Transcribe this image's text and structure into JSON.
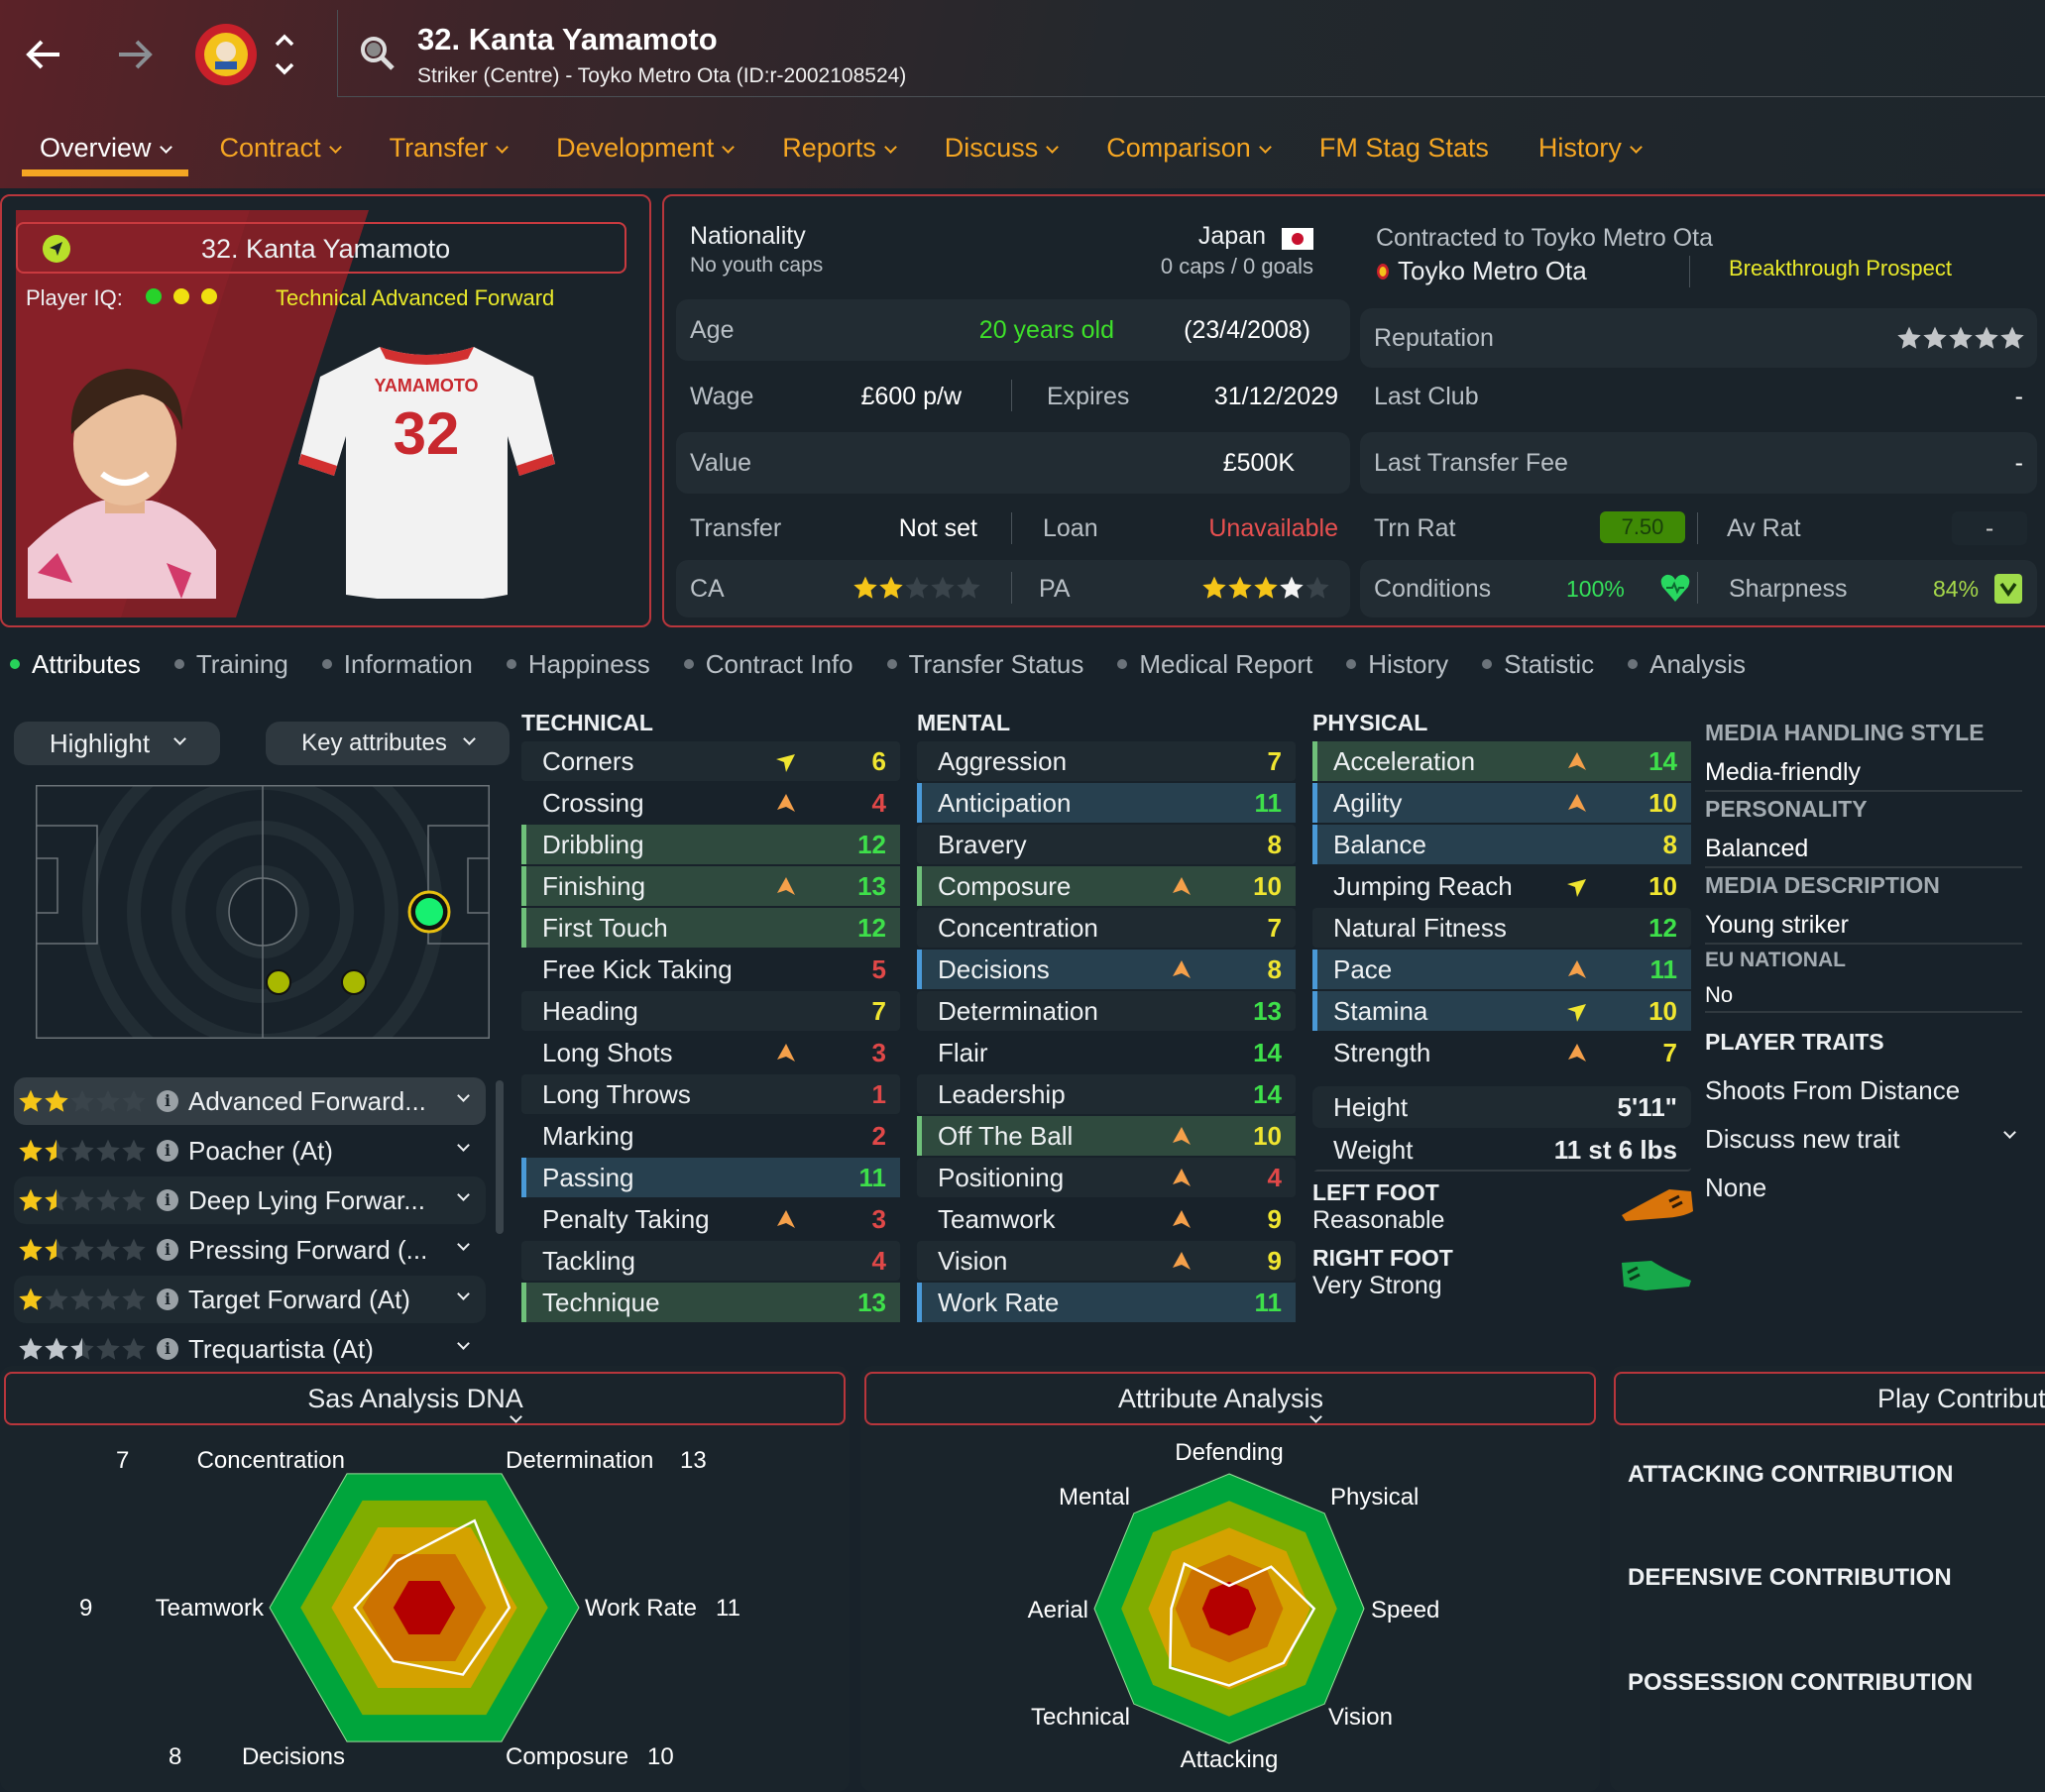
{
  "header": {
    "title": "32. Kanta Yamamoto",
    "subtitle": "Striker (Centre) - Toyko Metro Ota (ID:r-2002108524)",
    "icons": [
      "back-arrow-icon",
      "forward-arrow-icon",
      "club-badge-icon",
      "up-down-chevron-icon",
      "search-icon"
    ]
  },
  "nav": [
    {
      "label": "Overview",
      "dropdown": true,
      "active": true
    },
    {
      "label": "Contract",
      "dropdown": true
    },
    {
      "label": "Transfer",
      "dropdown": true
    },
    {
      "label": "Development",
      "dropdown": true
    },
    {
      "label": "Reports",
      "dropdown": true
    },
    {
      "label": "Discuss",
      "dropdown": true
    },
    {
      "label": "Comparison",
      "dropdown": true
    },
    {
      "label": "FM Stag Stats",
      "dropdown": false
    },
    {
      "label": "History",
      "dropdown": true
    }
  ],
  "player_card": {
    "name": "32. Kanta Yamamoto",
    "iq_label": "Player IQ:",
    "iq_dots": [
      "#27d22a",
      "#f0e010",
      "#f0e010"
    ],
    "role": "Technical Advanced Forward",
    "shirt_name": "YAMAMOTO",
    "shirt_number": "32"
  },
  "details": {
    "nationality_label": "Nationality",
    "youth_caps": "No youth caps",
    "nation": "Japan",
    "caps": "0 caps / 0 goals",
    "age_label": "Age",
    "age": "20 years old",
    "dob": "(23/4/2008)",
    "wage_label": "Wage",
    "wage": "£600 p/w",
    "expires_label": "Expires",
    "expires": "31/12/2029",
    "value_label": "Value",
    "value": "£500K",
    "transfer_label": "Transfer",
    "transfer": "Not set",
    "loan_label": "Loan",
    "loan": "Unavailable",
    "ca_label": "CA",
    "ca_stars": 2,
    "pa_label": "PA",
    "pa_stars": 3,
    "pa_range_stars": 1,
    "contracted": "Contracted to Toyko Metro Ota",
    "club": "Toyko Metro Ota",
    "status": "Breakthrough Prospect",
    "reputation_label": "Reputation",
    "reputation_stars": 5,
    "last_club_label": "Last Club",
    "last_club": "-",
    "last_fee_label": "Last Transfer Fee",
    "last_fee": "-",
    "trn_rat_label": "Trn Rat",
    "trn_rat": "7.50",
    "av_rat_label": "Av Rat",
    "av_rat": "-",
    "conditions_label": "Conditions",
    "conditions": "100%",
    "sharpness_label": "Sharpness",
    "sharpness": "84%"
  },
  "subtabs": [
    "Attributes",
    "Training",
    "Information",
    "Happiness",
    "Contract Info",
    "Transfer Status",
    "Medical Report",
    "History",
    "Statistic",
    "Analysis"
  ],
  "controls": {
    "highlight": "Highlight",
    "key_attributes": "Key attributes"
  },
  "roles": [
    {
      "name": "Advanced Forward...",
      "stars": 2,
      "color": "#f5c518"
    },
    {
      "name": "Poacher (At)",
      "stars": 1.5,
      "color": "#f5c518"
    },
    {
      "name": "Deep Lying Forwar...",
      "stars": 1.5,
      "color": "#f5c518"
    },
    {
      "name": "Pressing Forward (...",
      "stars": 1.5,
      "color": "#f5c518"
    },
    {
      "name": "Target Forward (At)",
      "stars": 1,
      "color": "#f5c518"
    },
    {
      "name": "Trequartista (At)",
      "stars": 2.5,
      "color": "#c0c6cc"
    }
  ],
  "attributes": {
    "technical": {
      "title": "TECHNICAL",
      "rows": [
        {
          "name": "Corners",
          "value": 6,
          "trend": "down"
        },
        {
          "name": "Crossing",
          "value": 4,
          "trend": "up"
        },
        {
          "name": "Dribbling",
          "value": 12,
          "hl": "key"
        },
        {
          "name": "Finishing",
          "value": 13,
          "trend": "up",
          "hl": "key"
        },
        {
          "name": "First Touch",
          "value": 12,
          "hl": "key"
        },
        {
          "name": "Free Kick Taking",
          "value": 5
        },
        {
          "name": "Heading",
          "value": 7
        },
        {
          "name": "Long Shots",
          "value": 3,
          "trend": "up"
        },
        {
          "name": "Long Throws",
          "value": 1
        },
        {
          "name": "Marking",
          "value": 2
        },
        {
          "name": "Passing",
          "value": 11,
          "hl": "blue"
        },
        {
          "name": "Penalty Taking",
          "value": 3,
          "trend": "up"
        },
        {
          "name": "Tackling",
          "value": 4
        },
        {
          "name": "Technique",
          "value": 13,
          "hl": "key"
        }
      ]
    },
    "mental": {
      "title": "MENTAL",
      "rows": [
        {
          "name": "Aggression",
          "value": 7
        },
        {
          "name": "Anticipation",
          "value": 11,
          "hl": "blue"
        },
        {
          "name": "Bravery",
          "value": 8
        },
        {
          "name": "Composure",
          "value": 10,
          "trend": "up",
          "hl": "key"
        },
        {
          "name": "Concentration",
          "value": 7
        },
        {
          "name": "Decisions",
          "value": 8,
          "trend": "up",
          "hl": "blue"
        },
        {
          "name": "Determination",
          "value": 13
        },
        {
          "name": "Flair",
          "value": 14
        },
        {
          "name": "Leadership",
          "value": 14
        },
        {
          "name": "Off The Ball",
          "value": 10,
          "trend": "up",
          "hl": "key"
        },
        {
          "name": "Positioning",
          "value": 4,
          "trend": "up"
        },
        {
          "name": "Teamwork",
          "value": 9,
          "trend": "up"
        },
        {
          "name": "Vision",
          "value": 9,
          "trend": "up"
        },
        {
          "name": "Work Rate",
          "value": 11,
          "hl": "blue"
        }
      ]
    },
    "physical": {
      "title": "PHYSICAL",
      "rows": [
        {
          "name": "Acceleration",
          "value": 14,
          "trend": "up",
          "hl": "key"
        },
        {
          "name": "Agility",
          "value": 10,
          "trend": "up",
          "hl": "blue"
        },
        {
          "name": "Balance",
          "value": 8,
          "hl": "blue"
        },
        {
          "name": "Jumping Reach",
          "value": 10,
          "trend": "down"
        },
        {
          "name": "Natural Fitness",
          "value": 12
        },
        {
          "name": "Pace",
          "value": 11,
          "trend": "up",
          "hl": "blue"
        },
        {
          "name": "Stamina",
          "value": 10,
          "trend": "down",
          "hl": "blue"
        },
        {
          "name": "Strength",
          "value": 7,
          "trend": "up"
        }
      ]
    },
    "height_label": "Height",
    "height": "5'11\"",
    "weight_label": "Weight",
    "weight": "11 st 6 lbs",
    "left_foot_label": "LEFT FOOT",
    "left_foot": "Reasonable",
    "left_foot_color": "#d9740a",
    "right_foot_label": "RIGHT FOOT",
    "right_foot": "Very Strong",
    "right_foot_color": "#17a84a",
    "value_colors": {
      "low": "#e04848",
      "mid": "#f0e530",
      "high": "#3ee04a"
    }
  },
  "info": {
    "media_style_label": "MEDIA HANDLING STYLE",
    "media_style": "Media-friendly",
    "personality_label": "PERSONALITY",
    "personality": "Balanced",
    "media_desc_label": "MEDIA DESCRIPTION",
    "media_desc": "Young striker",
    "eu_label": "EU NATIONAL",
    "eu": "No",
    "traits_label": "PLAYER TRAITS",
    "trait": "Shoots From Distance",
    "discuss": "Discuss new trait",
    "none": "None"
  },
  "bottom": {
    "panel1_title": "Sas Analysis DNA",
    "panel2_title": "Attribute Analysis",
    "panel3_title": "Play Contribut",
    "contributions": [
      "ATTACKING CONTRIBUTION",
      "DEFENSIVE CONTRIBUTION",
      "POSSESSION CONTRIBUTION"
    ]
  },
  "chart_data": [
    {
      "type": "radar",
      "max": 20,
      "ring_colors": [
        "#00a53c",
        "#80ad00",
        "#d4a200",
        "#cc7200",
        "#b40000"
      ],
      "axes": [
        "Determination",
        "Work Rate",
        "Composure",
        "Decisions",
        "Teamwork",
        "Concentration"
      ],
      "values": [
        13,
        11,
        10,
        8,
        9,
        7
      ]
    },
    {
      "type": "radar",
      "max": 1,
      "ring_colors": [
        "#00a53c",
        "#80ad00",
        "#d4a200",
        "#cc7200",
        "#b40000"
      ],
      "axes": [
        "Defending",
        "Physical",
        "Speed",
        "Vision",
        "Attacking",
        "Technical",
        "Aerial",
        "Mental"
      ],
      "values": [
        0.17,
        0.44,
        0.63,
        0.57,
        0.57,
        0.62,
        0.43,
        0.47
      ]
    }
  ]
}
